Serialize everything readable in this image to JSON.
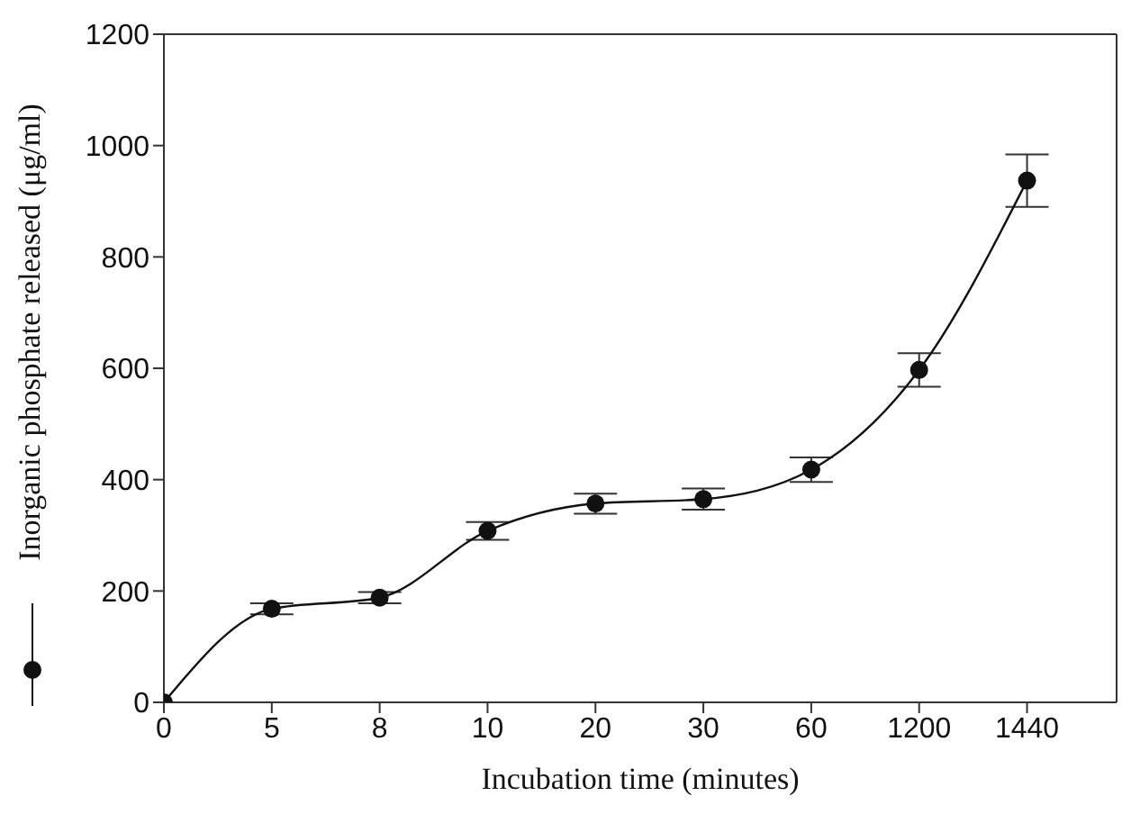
{
  "chart_data": {
    "type": "line",
    "xlabel": "Incubation time (minutes)",
    "ylabel": "Inorganic phosphate released (μg/ml)",
    "categories": [
      "0",
      "5",
      "8",
      "10",
      "20",
      "30",
      "60",
      "1200",
      "1440"
    ],
    "series": [
      {
        "color": "#111111",
        "values": [
          0,
          168,
          188,
          308,
          357,
          365,
          418,
          597,
          937
        ],
        "errors": [
          null,
          10,
          10,
          16,
          18,
          19,
          22,
          30,
          47
        ]
      }
    ],
    "ylim": [
      0,
      1200
    ],
    "yticks": [
      0,
      200,
      400,
      600,
      800,
      1000,
      1200
    ],
    "marker": "circle",
    "line_style": "solid"
  }
}
